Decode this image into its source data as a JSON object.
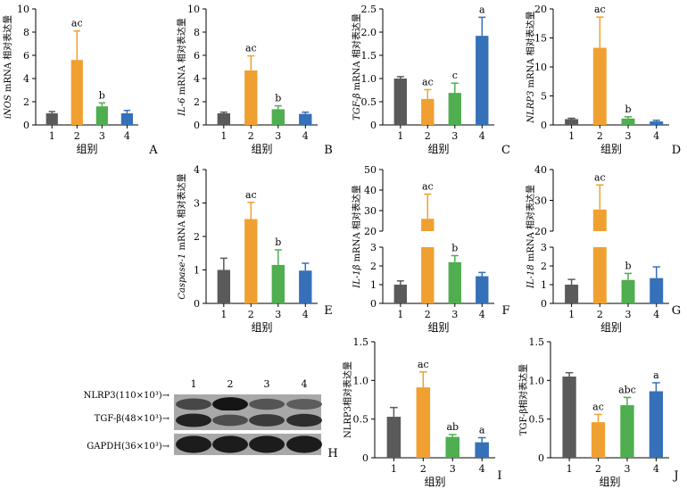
{
  "colors": {
    "g1": "#5a5a5a",
    "g2": "#f0a030",
    "g3": "#4fae4f",
    "g4": "#3570b8"
  },
  "x_title": "组别",
  "chart_data": [
    {
      "id": "A",
      "type": "bar",
      "panel_letter": "A",
      "ylabel_italic": "iNOS",
      "ylabel_rest": " mRNA 相对表达量",
      "categories": [
        "1",
        "2",
        "3",
        "4"
      ],
      "values": [
        1.0,
        5.6,
        1.6,
        1.0
      ],
      "errors": [
        0.15,
        2.5,
        0.3,
        0.25
      ],
      "labels": [
        "",
        "ac",
        "b",
        ""
      ],
      "ylim": [
        0,
        10
      ],
      "yticks": [
        "0",
        "2",
        "4",
        "6",
        "8",
        "10"
      ]
    },
    {
      "id": "B",
      "type": "bar",
      "panel_letter": "B",
      "ylabel_italic": "IL-6",
      "ylabel_rest": " mRNA 相对表达量",
      "categories": [
        "1",
        "2",
        "3",
        "4"
      ],
      "values": [
        1.0,
        4.7,
        1.35,
        0.95
      ],
      "errors": [
        0.1,
        1.25,
        0.3,
        0.15
      ],
      "labels": [
        "",
        "ac",
        "b",
        ""
      ],
      "ylim": [
        0,
        10
      ],
      "yticks": [
        "0",
        "2",
        "4",
        "6",
        "8",
        "10"
      ]
    },
    {
      "id": "C",
      "type": "bar",
      "panel_letter": "C",
      "ylabel_italic": "TGF-β",
      "ylabel_rest": " mRNA 相对表达量",
      "categories": [
        "1",
        "2",
        "3",
        "4"
      ],
      "values": [
        1.0,
        0.56,
        0.69,
        1.92
      ],
      "errors": [
        0.04,
        0.2,
        0.21,
        0.4
      ],
      "labels": [
        "",
        "ac",
        "c",
        "a"
      ],
      "ylim": [
        0,
        2.5
      ],
      "yticks": [
        "0",
        "0.5",
        "1.0",
        "1.5",
        "2.0",
        "2.5"
      ]
    },
    {
      "id": "D",
      "type": "bar",
      "panel_letter": "D",
      "ylabel_italic": "NLRP3",
      "ylabel_rest": " mRNA 相对表达量",
      "categories": [
        "1",
        "2",
        "3",
        "4"
      ],
      "values": [
        1.0,
        13.3,
        1.1,
        0.6
      ],
      "errors": [
        0.15,
        5.3,
        0.3,
        0.2
      ],
      "labels": [
        "",
        "ac",
        "b",
        ""
      ],
      "ylim": [
        0,
        20
      ],
      "yticks": [
        "0",
        "5",
        "10",
        "15",
        "20"
      ]
    },
    {
      "id": "E",
      "type": "bar",
      "panel_letter": "E",
      "ylabel_italic": "Caspase-1",
      "ylabel_rest": " mRNA 相对表达量",
      "categories": [
        "1",
        "2",
        "3",
        "4"
      ],
      "values": [
        1.0,
        2.52,
        1.15,
        0.98
      ],
      "errors": [
        0.35,
        0.5,
        0.45,
        0.22
      ],
      "labels": [
        "",
        "ac",
        "b",
        ""
      ],
      "ylim": [
        0,
        4
      ],
      "yticks": [
        "0",
        "1",
        "2",
        "3",
        "4"
      ]
    },
    {
      "id": "F",
      "type": "bar",
      "panel_letter": "F",
      "ylabel_italic": "IL-1β",
      "ylabel_rest": " mRNA 相对表达量",
      "categories": [
        "1",
        "2",
        "3",
        "4"
      ],
      "values": [
        1.0,
        26,
        2.2,
        1.45
      ],
      "errors": [
        0.2,
        12,
        0.35,
        0.2
      ],
      "labels": [
        "",
        "ac",
        "b",
        ""
      ],
      "broken": true,
      "low_lim": [
        0,
        3
      ],
      "high_lim": [
        20,
        50
      ],
      "low_ticks": [
        "0",
        "1",
        "2",
        "3"
      ],
      "high_ticks": [
        "20",
        "30",
        "40",
        "50"
      ]
    },
    {
      "id": "G",
      "type": "bar",
      "panel_letter": "G",
      "ylabel_italic": "IL-18",
      "ylabel_rest": " mRNA 相对表达量",
      "categories": [
        "1",
        "2",
        "3",
        "4"
      ],
      "values": [
        1.0,
        27,
        1.25,
        1.35
      ],
      "errors": [
        0.28,
        8,
        0.35,
        0.6
      ],
      "labels": [
        "",
        "ac",
        "b",
        ""
      ],
      "broken": true,
      "low_lim": [
        0,
        3
      ],
      "high_lim": [
        20,
        40
      ],
      "low_ticks": [
        "0",
        "1",
        "2",
        "3"
      ],
      "high_ticks": [
        "20",
        "30",
        "40"
      ]
    },
    {
      "id": "I",
      "type": "bar",
      "panel_letter": "I",
      "ylabel_italic": "",
      "ylabel_rest": "NLRP3相对表达量",
      "categories": [
        "1",
        "2",
        "3",
        "4"
      ],
      "values": [
        0.53,
        0.91,
        0.27,
        0.2
      ],
      "errors": [
        0.12,
        0.2,
        0.03,
        0.06
      ],
      "labels": [
        "",
        "ac",
        "ab",
        "a"
      ],
      "ylim": [
        0,
        1.5
      ],
      "yticks": [
        "0",
        "0.5",
        "1.0",
        "1.5"
      ]
    },
    {
      "id": "J",
      "type": "bar",
      "panel_letter": "J",
      "ylabel_italic": "",
      "ylabel_rest": "TGF-β相对表达量",
      "categories": [
        "1",
        "2",
        "3",
        "4"
      ],
      "values": [
        1.05,
        0.46,
        0.68,
        0.86
      ],
      "errors": [
        0.05,
        0.1,
        0.1,
        0.11
      ],
      "labels": [
        "",
        "ac",
        "abc",
        "a"
      ],
      "ylim": [
        0,
        1.5
      ],
      "yticks": [
        "0",
        "0.5",
        "1.0",
        "1.5"
      ]
    }
  ],
  "western_blot": {
    "panel_letter": "H",
    "lane_labels": [
      "1",
      "2",
      "3",
      "4"
    ],
    "rows": [
      {
        "label": "NLRP3(110×10³)→",
        "intensity": [
          0.55,
          0.95,
          0.45,
          0.38
        ]
      },
      {
        "label": "TGF-β(48×10³)→",
        "intensity": [
          0.85,
          0.5,
          0.65,
          0.75
        ]
      },
      {
        "label": "GAPDH(36×10³)→",
        "intensity": [
          0.9,
          0.9,
          0.9,
          0.9
        ]
      }
    ]
  }
}
